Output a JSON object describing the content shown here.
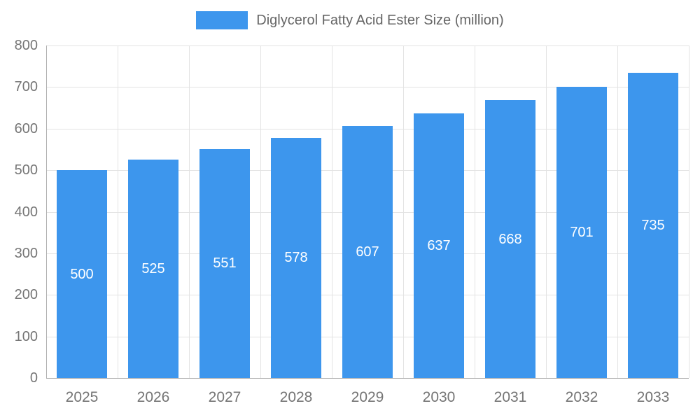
{
  "chart_data": {
    "type": "bar",
    "title": "Diglycerol Fatty Acid Ester Size (million)",
    "categories": [
      "2025",
      "2026",
      "2027",
      "2028",
      "2029",
      "2030",
      "2031",
      "2032",
      "2033"
    ],
    "values": [
      500,
      525,
      551,
      578,
      607,
      637,
      668,
      701,
      735
    ],
    "xlabel": "",
    "ylabel": "",
    "ylim": [
      0,
      800
    ],
    "ytick_step": 100,
    "grid": true,
    "legend_position": "top",
    "bar_color": "#3d96ed",
    "value_label_color": "#ffffff",
    "tick_label_color": "#757575",
    "gridline_color": "#e3e3e3",
    "axis_line_color": "#b0b0b0"
  }
}
